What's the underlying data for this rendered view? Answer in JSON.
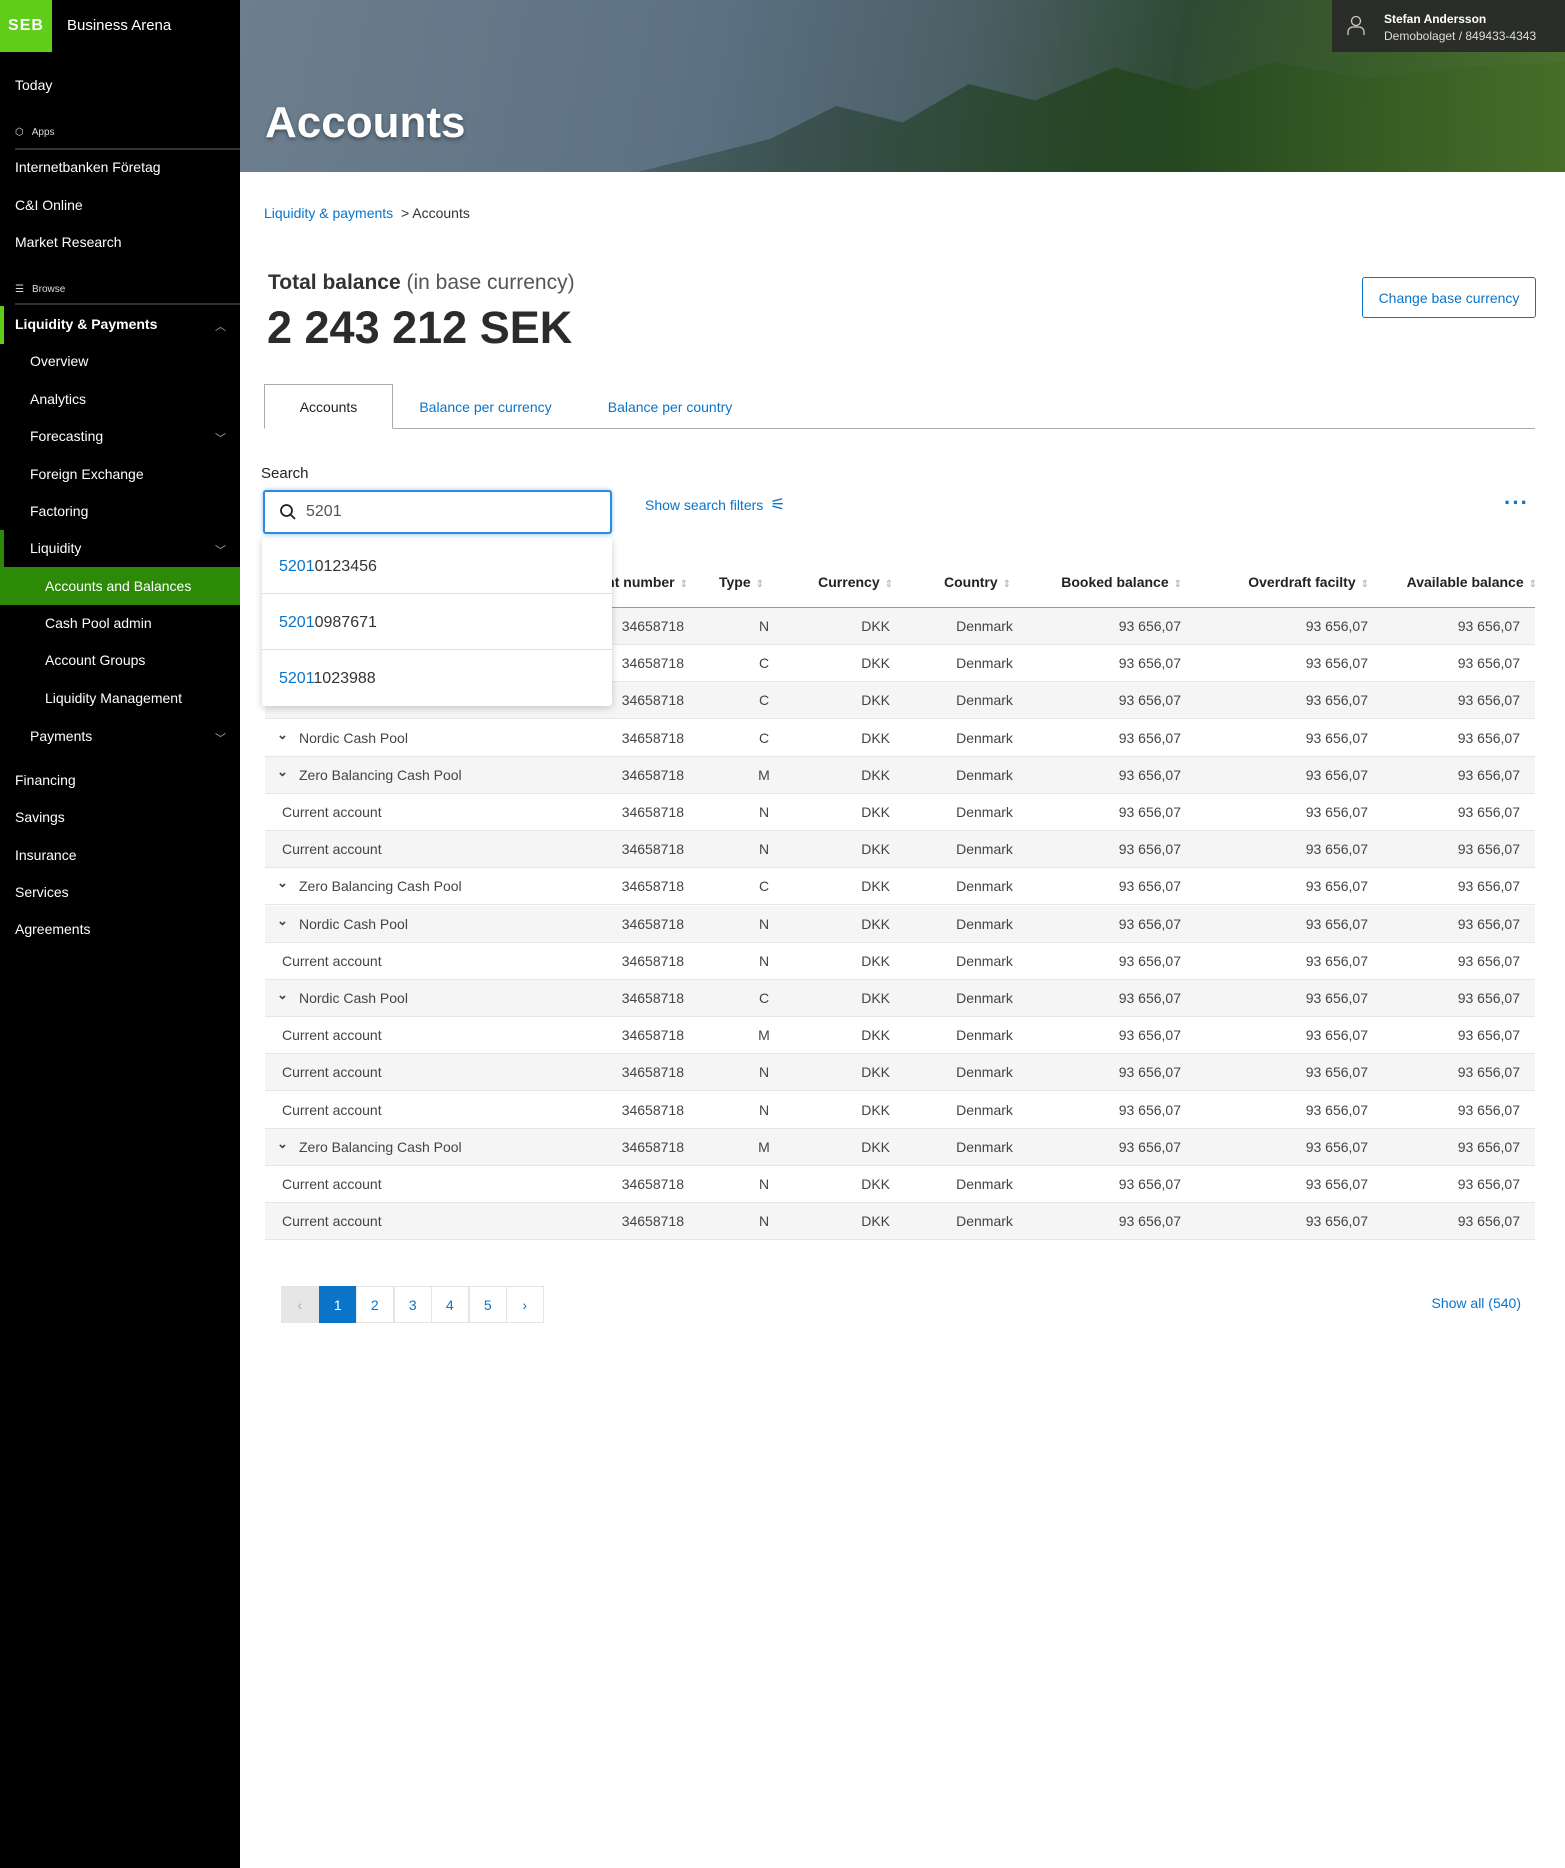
{
  "app": {
    "logo": "SEB",
    "name": "Business Arena"
  },
  "sidebar": {
    "today": "Today",
    "apps_label": "Apps",
    "apps": [
      "Internetbanken Företag",
      "C&I Online",
      "Market Research"
    ],
    "browse_label": "Browse",
    "liquidity_payments": "Liquidity & Payments",
    "lp_items": {
      "overview": "Overview",
      "analytics": "Analytics",
      "forecasting": "Forecasting",
      "fx": "Foreign Exchange",
      "factoring": "Factoring",
      "liquidity": "Liquidity",
      "payments": "Payments"
    },
    "liquidity_items": [
      "Accounts and Balances",
      "Cash Pool admin",
      "Account Groups",
      "Liquidity Management"
    ],
    "bottom": [
      "Financing",
      "Savings",
      "Insurance",
      "Services",
      "Agreements"
    ],
    "accent": "#60cd18",
    "active_bg": "#2d8a06"
  },
  "header": {
    "title": "Accounts",
    "user_name": "Stefan Andersson",
    "company": "Demobolaget / 849433-4343"
  },
  "breadcrumb": {
    "parent": "Liquidity & payments",
    "current": "> Accounts"
  },
  "balance": {
    "label": "Total balance",
    "sub": "(in base currency)",
    "amount": "2 243 212 SEK",
    "change_button": "Change base currency"
  },
  "tabs": [
    "Accounts",
    "Balance per currency",
    "Balance per country"
  ],
  "search": {
    "label": "Search",
    "value": "5201",
    "filters": "Show search filters",
    "suggestions": [
      {
        "match": "5201",
        "rest": "0123456"
      },
      {
        "match": "5201",
        "rest": "0987671"
      },
      {
        "match": "5201",
        "rest": "1023988"
      }
    ]
  },
  "table": {
    "headers": {
      "account_number": "Account number",
      "type": "Type",
      "currency": "Currency",
      "country": "Country",
      "booked": "Booked balance",
      "overdraft": "Overdraft facilty",
      "available": "Available balance"
    },
    "rows": [
      {
        "name": "",
        "expand": false,
        "number": "34658718",
        "type": "N",
        "currency": "DKK",
        "country": "Denmark",
        "booked": "93 656,07",
        "overdraft": "93 656,07",
        "available": "93 656,07"
      },
      {
        "name": "",
        "expand": false,
        "number": "34658718",
        "type": "C",
        "currency": "DKK",
        "country": "Denmark",
        "booked": "93 656,07",
        "overdraft": "93 656,07",
        "available": "93 656,07"
      },
      {
        "name": "",
        "expand": false,
        "number": "34658718",
        "type": "C",
        "currency": "DKK",
        "country": "Denmark",
        "booked": "93 656,07",
        "overdraft": "93 656,07",
        "available": "93 656,07"
      },
      {
        "name": "Nordic Cash Pool",
        "expand": true,
        "number": "34658718",
        "type": "C",
        "currency": "DKK",
        "country": "Denmark",
        "booked": "93 656,07",
        "overdraft": "93 656,07",
        "available": "93 656,07"
      },
      {
        "name": "Zero Balancing Cash Pool",
        "expand": true,
        "number": "34658718",
        "type": "M",
        "currency": "DKK",
        "country": "Denmark",
        "booked": "93 656,07",
        "overdraft": "93 656,07",
        "available": "93 656,07"
      },
      {
        "name": "Current account",
        "expand": false,
        "number": "34658718",
        "type": "N",
        "currency": "DKK",
        "country": "Denmark",
        "booked": "93 656,07",
        "overdraft": "93 656,07",
        "available": "93 656,07"
      },
      {
        "name": "Current account",
        "expand": false,
        "number": "34658718",
        "type": "N",
        "currency": "DKK",
        "country": "Denmark",
        "booked": "93 656,07",
        "overdraft": "93 656,07",
        "available": "93 656,07"
      },
      {
        "name": "Zero Balancing Cash Pool",
        "expand": true,
        "number": "34658718",
        "type": "C",
        "currency": "DKK",
        "country": "Denmark",
        "booked": "93 656,07",
        "overdraft": "93 656,07",
        "available": "93 656,07"
      },
      {
        "name": "Nordic Cash Pool",
        "expand": true,
        "number": "34658718",
        "type": "N",
        "currency": "DKK",
        "country": "Denmark",
        "booked": "93 656,07",
        "overdraft": "93 656,07",
        "available": "93 656,07"
      },
      {
        "name": "Current account",
        "expand": false,
        "number": "34658718",
        "type": "N",
        "currency": "DKK",
        "country": "Denmark",
        "booked": "93 656,07",
        "overdraft": "93 656,07",
        "available": "93 656,07"
      },
      {
        "name": "Nordic Cash Pool",
        "expand": true,
        "number": "34658718",
        "type": "C",
        "currency": "DKK",
        "country": "Denmark",
        "booked": "93 656,07",
        "overdraft": "93 656,07",
        "available": "93 656,07"
      },
      {
        "name": "Current account",
        "expand": false,
        "number": "34658718",
        "type": "M",
        "currency": "DKK",
        "country": "Denmark",
        "booked": "93 656,07",
        "overdraft": "93 656,07",
        "available": "93 656,07"
      },
      {
        "name": "Current account",
        "expand": false,
        "number": "34658718",
        "type": "N",
        "currency": "DKK",
        "country": "Denmark",
        "booked": "93 656,07",
        "overdraft": "93 656,07",
        "available": "93 656,07"
      },
      {
        "name": "Current account",
        "expand": false,
        "number": "34658718",
        "type": "N",
        "currency": "DKK",
        "country": "Denmark",
        "booked": "93 656,07",
        "overdraft": "93 656,07",
        "available": "93 656,07"
      },
      {
        "name": "Zero Balancing Cash Pool",
        "expand": true,
        "number": "34658718",
        "type": "M",
        "currency": "DKK",
        "country": "Denmark",
        "booked": "93 656,07",
        "overdraft": "93 656,07",
        "available": "93 656,07"
      },
      {
        "name": "Current account",
        "expand": false,
        "number": "34658718",
        "type": "N",
        "currency": "DKK",
        "country": "Denmark",
        "booked": "93 656,07",
        "overdraft": "93 656,07",
        "available": "93 656,07"
      },
      {
        "name": "Current account",
        "expand": false,
        "number": "34658718",
        "type": "N",
        "currency": "DKK",
        "country": "Denmark",
        "booked": "93 656,07",
        "overdraft": "93 656,07",
        "available": "93 656,07"
      }
    ]
  },
  "pagination": {
    "pages": [
      "1",
      "2",
      "3",
      "4",
      "5"
    ],
    "current": "1",
    "prev": "‹",
    "next": "›",
    "show_all": "Show all (540)"
  },
  "colors": {
    "link": "#0a74c9",
    "brand_green": "#60cd18"
  }
}
